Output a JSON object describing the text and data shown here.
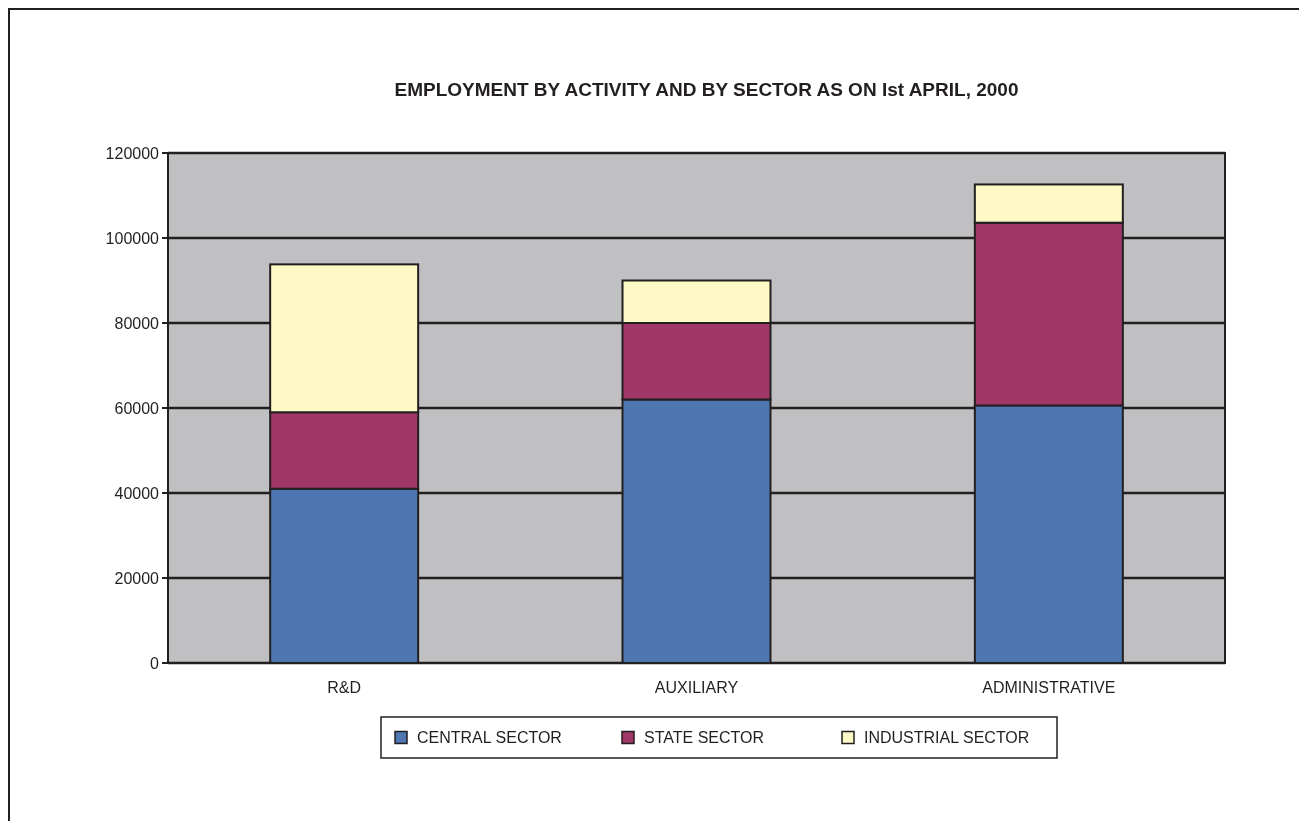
{
  "chart_data": {
    "type": "bar",
    "title": "EMPLOYMENT BY ACTIVITY AND BY SECTOR AS ON Ist APRIL, 2000",
    "categories": [
      "R&D",
      "AUXILIARY",
      "ADMINISTRATIVE"
    ],
    "stacked": true,
    "series": [
      {
        "name": "CENTRAL SECTOR",
        "color": "#4e76b0",
        "values": [
          41000,
          62000,
          60600
        ]
      },
      {
        "name": "STATE SECTOR",
        "color": "#a03767",
        "values": [
          18000,
          18000,
          43000
        ]
      },
      {
        "name": "INDUSTRIAL SECTOR",
        "color": "#fffac5",
        "values": [
          34800,
          10000,
          9000
        ]
      }
    ],
    "ylim": [
      0,
      120000
    ],
    "yticks": [
      0,
      20000,
      40000,
      60000,
      80000,
      100000,
      120000
    ],
    "grid": "y",
    "legend": "bottom"
  }
}
